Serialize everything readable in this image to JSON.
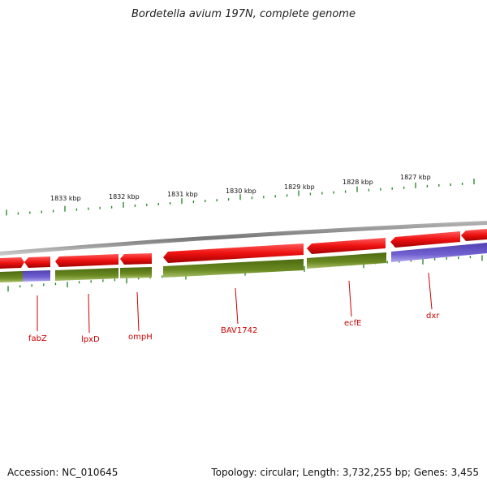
{
  "title": "Bordetella avium 197N, complete genome",
  "footer": {
    "accession": "Accession: NC_010645",
    "summary": "Topology: circular; Length: 3,732,255 bp; Genes: 3,455"
  },
  "colors": {
    "forward_gene": "#ee1111",
    "reverse_gene": "#5c7a1e",
    "reverse_gene_alt": "#6a5acd",
    "backbone": "#8a8a8a",
    "ticks": "#2e8b2e",
    "label": "#cc0000"
  },
  "kbp_labels": [
    "1833 kbp",
    "1832 kbp",
    "1831 kbp",
    "1830 kbp",
    "1829 kbp",
    "1828 kbp",
    "1827 kbp"
  ],
  "gene_labels": [
    {
      "name": "fabZ"
    },
    {
      "name": "lpxD"
    },
    {
      "name": "ompH"
    },
    {
      "name": "BAV1742"
    },
    {
      "name": "ecfE"
    },
    {
      "name": "dxr"
    }
  ]
}
